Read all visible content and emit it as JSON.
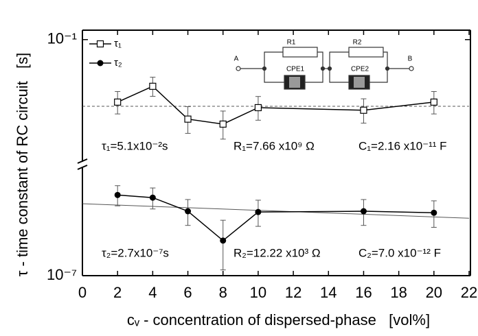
{
  "chart_data": {
    "type": "line",
    "xlabel": "cᵥ - concentration of dispersed-phase   [vol%]",
    "ylabel": "τ - time constant of RC circuit   [s]",
    "xlim": [
      0,
      22
    ],
    "xticks": [
      0,
      2,
      4,
      6,
      8,
      10,
      12,
      14,
      16,
      18,
      20,
      22
    ],
    "ylog": true,
    "panels": [
      {
        "ylim": [
          0.0293,
          0.11
        ],
        "yticks": [
          {
            "value": 0.1,
            "label": "10⁻¹"
          }
        ]
      },
      {
        "ylim": [
          1e-07,
          5e-07
        ],
        "yticks": [
          {
            "value": 1e-07,
            "label": "10⁻⁷"
          }
        ]
      }
    ],
    "series": [
      {
        "name": "τ₁",
        "color": "#000000",
        "marker": "open-square",
        "panel": 0,
        "x": [
          2,
          4,
          6,
          8,
          10,
          16,
          20
        ],
        "values": [
          0.0532,
          0.0624,
          0.0448,
          0.0426,
          0.0503,
          0.049,
          0.0532
        ],
        "errors": [
          0.006,
          0.006,
          0.006,
          0.006,
          0.006,
          0.006,
          0.006
        ]
      },
      {
        "name": "τ₂",
        "color": "#000000",
        "marker": "filled-circle",
        "panel": 1,
        "x": [
          2,
          4,
          6,
          8,
          10,
          16,
          20
        ],
        "values": [
          3.34e-07,
          3.21e-07,
          2.62e-07,
          1.69e-07,
          2.59e-07,
          2.62e-07,
          2.56e-07
        ],
        "errors": [
          5e-08,
          5e-08,
          5e-08,
          6e-08,
          5e-08,
          5e-08,
          5e-08
        ]
      }
    ],
    "reference_lines": [
      {
        "panel": 0,
        "style": "dashed",
        "x": [
          0,
          22
        ],
        "values": [
          0.051,
          0.051
        ]
      },
      {
        "panel": 1,
        "style": "solid",
        "x": [
          0,
          22
        ],
        "values": [
          2.93e-07,
          2.36e-07
        ]
      }
    ],
    "annotations": [
      "τ₁=5.1x10⁻²s",
      "R₁=7.66 x10⁹ Ω",
      "C₁=2.16 x10⁻¹¹ F",
      "τ₂=2.7x10⁻⁷s",
      "R₂=12.22 x10³ Ω",
      "C₂=7.0 x10⁻¹² F"
    ],
    "inset": {
      "left_node": "A",
      "right_node": "B",
      "r1": "R1",
      "r2": "R2",
      "cpe1": "CPE1",
      "cpe2": "CPE2"
    }
  }
}
